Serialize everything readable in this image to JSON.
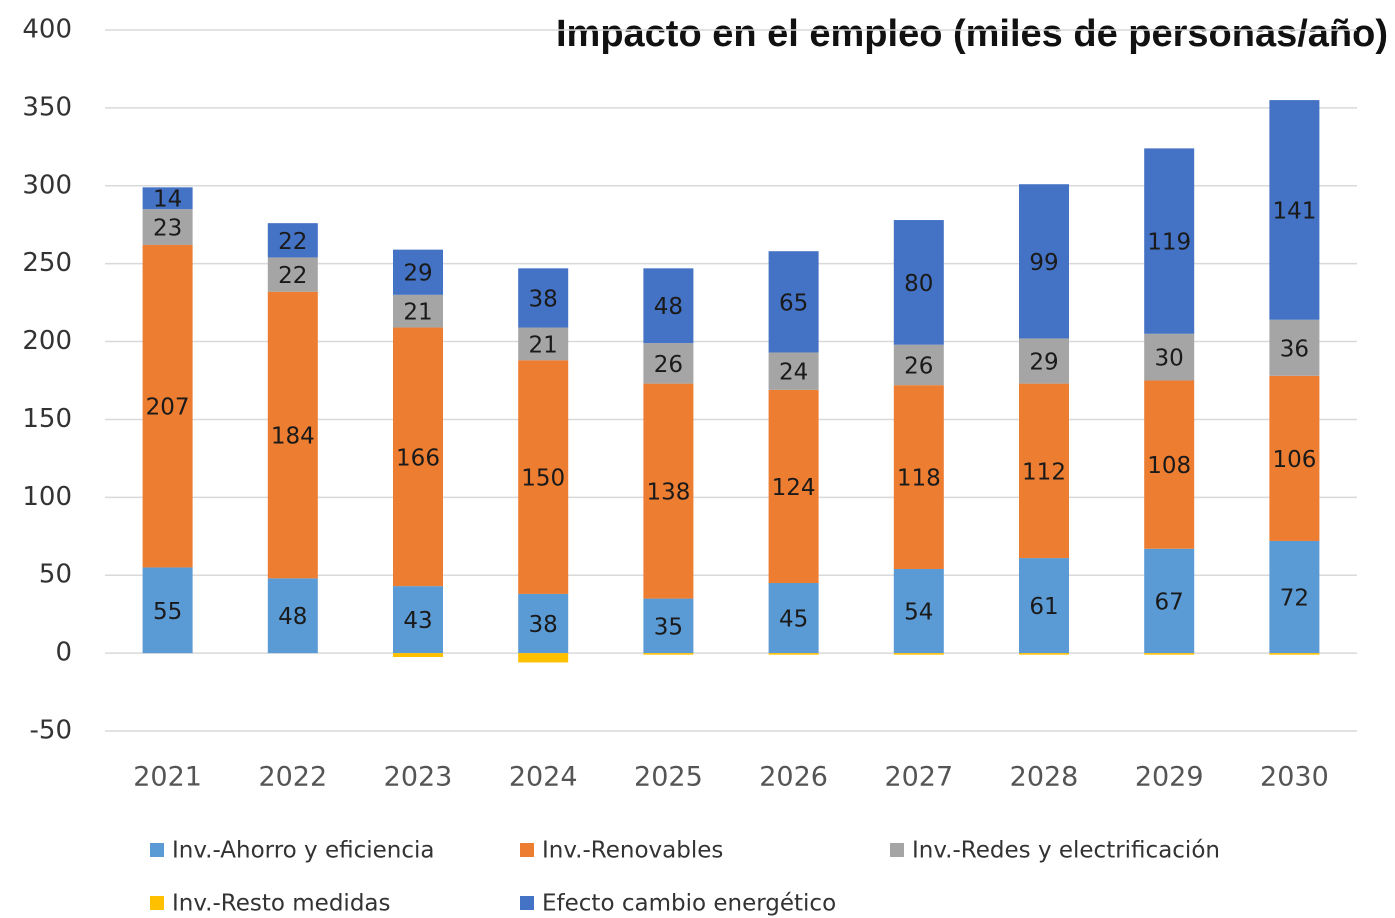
{
  "chart_data": {
    "type": "stacked_bar",
    "title": "Impacto en el empleo (miles de personas/año)",
    "categories": [
      "2021",
      "2022",
      "2023",
      "2024",
      "2025",
      "2026",
      "2027",
      "2028",
      "2029",
      "2030"
    ],
    "series": [
      {
        "name": "Inv.-Ahorro y eficiencia",
        "color": "#5b9bd5",
        "values": [
          55,
          48,
          43,
          38,
          35,
          45,
          54,
          61,
          67,
          72
        ]
      },
      {
        "name": "Inv.-Renovables",
        "color": "#ed7d31",
        "values": [
          207,
          184,
          166,
          150,
          138,
          124,
          118,
          112,
          108,
          106
        ]
      },
      {
        "name": "Inv.-Redes y electrificación",
        "color": "#a5a5a5",
        "values": [
          23,
          22,
          21,
          21,
          26,
          24,
          26,
          29,
          30,
          36
        ]
      },
      {
        "name": "Inv.-Resto medidas",
        "color": "#ffc000",
        "values": [
          0,
          0,
          -2.5,
          -6,
          -1,
          -1,
          -1,
          -1,
          -1,
          -1
        ]
      },
      {
        "name": "Efecto cambio energético",
        "color": "#4472c4",
        "values": [
          14,
          22,
          29,
          38,
          48,
          65,
          80,
          99,
          119,
          141
        ]
      }
    ],
    "labeled_series": [
      0,
      1,
      2,
      4
    ],
    "ylim": [
      -50,
      400
    ],
    "yticks": [
      -50,
      0,
      50,
      100,
      150,
      200,
      250,
      300,
      350,
      400
    ],
    "grid": true,
    "legend": "bottom"
  }
}
